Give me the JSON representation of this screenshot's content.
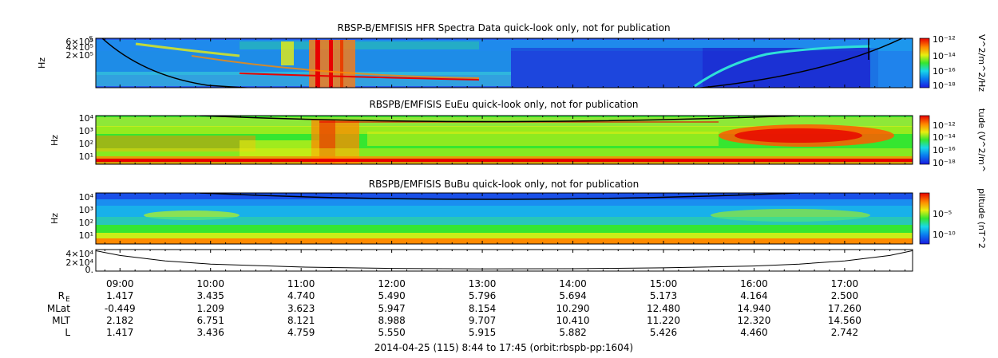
{
  "chart_data": [
    {
      "type": "heatmap",
      "title": "RBSP-B/EMFISIS  HFR Spectra Data quick-look only, not for publication",
      "ylabel": "Hz",
      "y_scale": "log",
      "y_ticks": [
        "6×10⁵",
        "4×10⁵",
        "2×10⁵"
      ],
      "y_top_marker": "5",
      "colorbar": {
        "label": "V^2/m^2/Hz",
        "ticks": [
          "10⁻¹²",
          "10⁻¹⁴",
          "10⁻¹⁶",
          "10⁻¹⁸"
        ],
        "log_range": [
          -18,
          -12
        ]
      }
    },
    {
      "type": "heatmap",
      "title": "RBSPB/EMFISIS  EuEu quick-look only, not for publication",
      "ylabel": "Hz",
      "y_scale": "log",
      "y_ticks": [
        "10⁴",
        "10³",
        "10²",
        "10¹"
      ],
      "colorbar": {
        "label": "tude (V^2/m^",
        "ticks": [
          "10⁻¹²",
          "10⁻¹⁴",
          "10⁻¹⁶",
          "10⁻¹⁸"
        ],
        "log_range": [
          -18,
          -11
        ]
      }
    },
    {
      "type": "heatmap",
      "title": "RBSPB/EMFISIS  BuBu quick-look only, not for publication",
      "ylabel": "Hz",
      "y_scale": "log",
      "y_ticks": [
        "10⁴",
        "10³",
        "10²",
        "10¹"
      ],
      "colorbar": {
        "label": "plitude (nT^2",
        "ticks": [
          "10⁻⁵",
          "10⁻¹⁰"
        ],
        "log_range": [
          -12,
          -3
        ]
      }
    },
    {
      "type": "line",
      "y_ticks": [
        "4×10⁴",
        "2×10⁴",
        "0."
      ],
      "ylim": [
        0,
        40000
      ],
      "x": [
        8.73,
        9.0,
        9.5,
        10.0,
        11.0,
        12.0,
        13.0,
        14.0,
        15.0,
        16.0,
        16.5,
        17.0,
        17.5,
        17.75
      ],
      "values": [
        38000,
        29000,
        19000,
        13000,
        7500,
        5000,
        4200,
        4500,
        6000,
        9500,
        13000,
        19000,
        29000,
        38000
      ]
    }
  ],
  "time_axis": {
    "start_hour": 8.7333,
    "end_hour": 17.75,
    "labels": [
      "09:00",
      "10:00",
      "11:00",
      "12:00",
      "13:00",
      "14:00",
      "15:00",
      "16:00",
      "17:00"
    ]
  },
  "ephemeris": {
    "rows": [
      {
        "label": "R",
        "sub": "E",
        "values": [
          "1.417",
          "3.435",
          "4.740",
          "5.490",
          "5.796",
          "5.694",
          "5.173",
          "4.164",
          "2.500"
        ]
      },
      {
        "label": "MLat",
        "values": [
          "-0.449",
          "1.209",
          "3.623",
          "5.947",
          "8.154",
          "10.290",
          "12.480",
          "14.940",
          "17.260"
        ]
      },
      {
        "label": "MLT",
        "values": [
          "2.182",
          "6.751",
          "8.121",
          "8.988",
          "9.707",
          "10.410",
          "11.220",
          "12.320",
          "14.560"
        ]
      },
      {
        "label": "L",
        "values": [
          "1.417",
          "3.436",
          "4.759",
          "5.550",
          "5.915",
          "5.882",
          "5.426",
          "4.460",
          "2.742"
        ]
      }
    ]
  },
  "footer": "2014-04-25 (115) 8:44 to 17:45 (orbit:rbspb-pp:1604)"
}
